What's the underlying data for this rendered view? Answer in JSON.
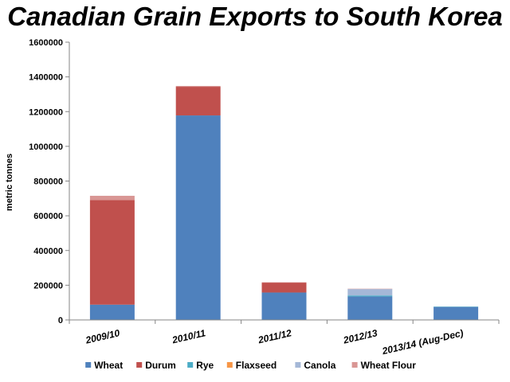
{
  "chart_data": {
    "type": "bar",
    "stacked": true,
    "title": "Canadian Grain Exports to South Korea",
    "xlabel": "",
    "ylabel": "metric tonnes",
    "ylim": [
      0,
      1600000
    ],
    "yticks": [
      0,
      200000,
      400000,
      600000,
      800000,
      1000000,
      1200000,
      1400000,
      1600000
    ],
    "grid": false,
    "legend_position": "bottom",
    "categories": [
      "2009/10",
      "2010/11",
      "2011/12",
      "2012/13",
      "2013/14 (Aug-Dec)"
    ],
    "series": [
      {
        "name": "Wheat",
        "color": "#4f81bd",
        "values": [
          88000,
          1178000,
          158000,
          135000,
          75000
        ]
      },
      {
        "name": "Durum",
        "color": "#c0504d",
        "values": [
          603000,
          165000,
          57000,
          0,
          0
        ]
      },
      {
        "name": "Rye",
        "color": "#4bacc6",
        "values": [
          0,
          0,
          0,
          6000,
          2000
        ]
      },
      {
        "name": "Flaxseed",
        "color": "#f79646",
        "values": [
          0,
          0,
          0,
          0,
          0
        ]
      },
      {
        "name": "Canola",
        "color": "#a5b8d7",
        "values": [
          0,
          0,
          0,
          37000,
          0
        ]
      },
      {
        "name": "Wheat Flour",
        "color": "#d99694",
        "values": [
          24000,
          5000,
          2000,
          2000,
          0
        ]
      }
    ]
  }
}
